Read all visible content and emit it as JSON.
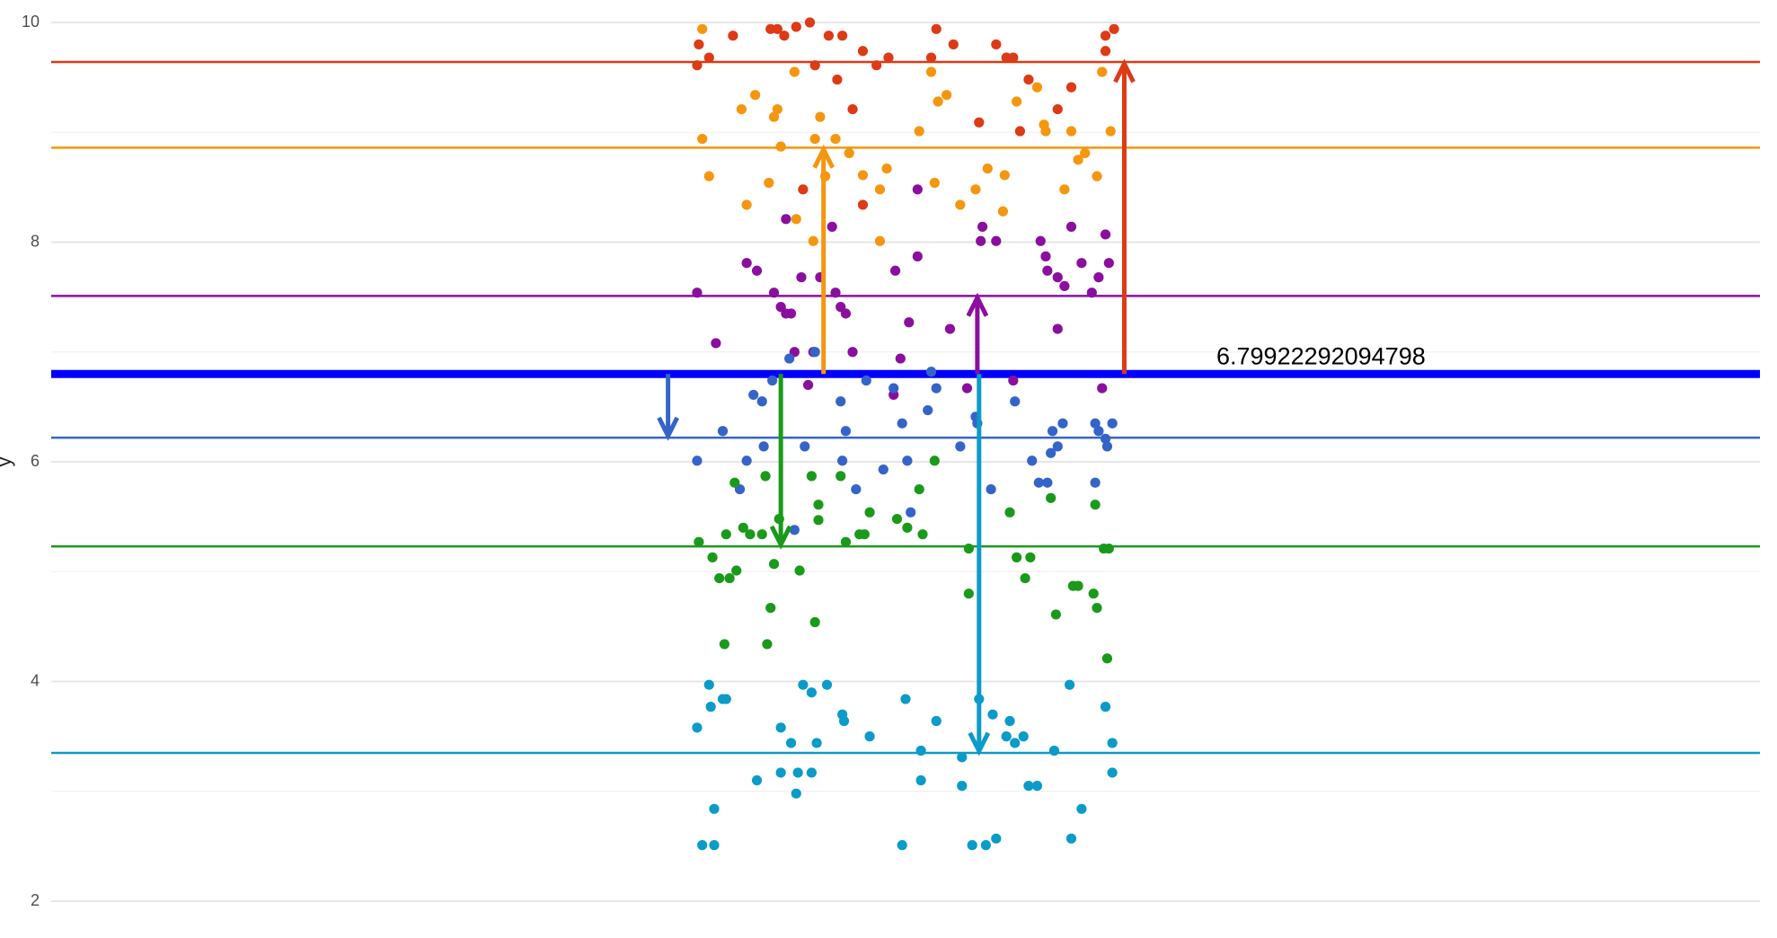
{
  "chart_data": {
    "type": "scatter",
    "ylabel": "y",
    "xlim": [
      0,
      100
    ],
    "ylim": [
      2,
      10
    ],
    "yticks": [
      2,
      4,
      6,
      8,
      10
    ],
    "minor_yticks": [
      3,
      5,
      7,
      9
    ],
    "grid": true,
    "overall_mean": 6.79922292094798,
    "overall_color": "#0000ff",
    "series": [
      {
        "color": "#dd3a15",
        "mean": 9.64,
        "arrow_x": 62.8,
        "x": [
          37.8,
          37.9,
          38.5,
          39.9,
          42.1,
          42.5,
          42.9,
          43.6,
          44.4,
          44.7,
          45.5,
          46.0,
          46.3,
          46.9,
          47.5,
          48.3,
          49.0,
          51.8,
          51.5,
          52.8,
          54.3,
          55.3,
          55.9,
          56.3,
          56.7,
          57.2,
          58.9,
          59.7,
          61.7,
          62.2,
          61.7,
          47.5,
          44.0
        ],
        "values": [
          9.61,
          9.8,
          9.68,
          9.88,
          9.94,
          9.94,
          9.88,
          9.96,
          10.0,
          9.61,
          9.88,
          9.48,
          9.88,
          9.21,
          9.74,
          9.61,
          9.68,
          9.94,
          9.68,
          9.8,
          9.09,
          9.8,
          9.68,
          9.68,
          9.01,
          9.48,
          9.21,
          9.41,
          9.74,
          9.94,
          9.88,
          8.34,
          8.48
        ]
      },
      {
        "color": "#f5960f",
        "mean": 8.86,
        "arrow_x": 45.2,
        "x": [
          38.1,
          38.5,
          40.4,
          40.7,
          41.2,
          42.0,
          42.3,
          42.5,
          42.7,
          43.5,
          43.6,
          44.6,
          45.0,
          44.7,
          45.3,
          45.9,
          46.7,
          47.5,
          48.5,
          48.9,
          48.5,
          50.8,
          51.5,
          51.7,
          51.9,
          52.4,
          53.2,
          54.1,
          54.8,
          55.7,
          55.8,
          56.5,
          57.7,
          58.1,
          58.2,
          59.3,
          59.7,
          60.1,
          60.5,
          61.2,
          61.5,
          62.0,
          38.1
        ],
        "values": [
          8.94,
          8.6,
          9.21,
          8.34,
          9.34,
          8.54,
          9.14,
          9.21,
          8.87,
          9.55,
          8.21,
          8.01,
          9.14,
          8.94,
          8.6,
          8.94,
          8.81,
          8.61,
          8.01,
          8.67,
          8.48,
          9.01,
          9.55,
          8.54,
          9.28,
          9.34,
          8.34,
          8.48,
          8.67,
          8.28,
          8.61,
          9.28,
          9.41,
          9.07,
          9.01,
          8.48,
          9.01,
          8.75,
          8.81,
          8.6,
          9.55,
          9.01,
          9.94
        ]
      },
      {
        "color": "#8b0f9e",
        "mean": 7.51,
        "arrow_x": 54.2,
        "x": [
          37.8,
          38.9,
          40.7,
          41.3,
          42.3,
          42.7,
          43.0,
          43.3,
          43.5,
          43.9,
          44.6,
          45.0,
          45.7,
          45.9,
          46.2,
          46.5,
          46.9,
          49.4,
          49.3,
          49.7,
          50.2,
          50.7,
          50.7,
          52.6,
          53.6,
          54.4,
          54.5,
          55.3,
          56.3,
          57.9,
          58.2,
          58.3,
          58.9,
          58.9,
          59.3,
          59.7,
          60.3,
          60.9,
          61.3,
          61.7,
          61.9,
          61.5,
          44.3,
          43.0
        ],
        "values": [
          7.54,
          7.08,
          7.81,
          7.74,
          7.54,
          7.41,
          7.35,
          7.35,
          7.0,
          7.68,
          7.0,
          7.68,
          8.14,
          7.54,
          7.41,
          7.35,
          7.0,
          7.74,
          6.61,
          6.94,
          7.27,
          7.87,
          8.48,
          7.21,
          6.67,
          8.01,
          8.14,
          8.01,
          6.74,
          8.01,
          7.87,
          7.74,
          7.68,
          7.21,
          7.6,
          8.14,
          7.81,
          7.54,
          7.68,
          8.07,
          7.81,
          6.67,
          6.7,
          8.21
        ]
      },
      {
        "color": "#3464c8",
        "mean": 6.22,
        "arrow_x": 36.1,
        "x": [
          37.8,
          39.3,
          40.3,
          40.7,
          41.1,
          41.6,
          41.7,
          42.2,
          43.2,
          44.1,
          44.7,
          46.2,
          46.3,
          46.5,
          47.1,
          47.7,
          48.7,
          49.3,
          49.8,
          50.1,
          50.3,
          51.3,
          51.5,
          51.8,
          53.2,
          54.1,
          54.2,
          55.0,
          56.4,
          57.4,
          57.8,
          58.3,
          58.5,
          58.6,
          58.9,
          59.2,
          61.1,
          61.1,
          61.3,
          61.7,
          62.1,
          61.8,
          43.5
        ],
        "values": [
          6.01,
          6.28,
          5.75,
          6.01,
          6.61,
          6.55,
          6.14,
          6.74,
          6.94,
          6.14,
          7.0,
          6.55,
          6.01,
          6.28,
          5.75,
          6.74,
          5.93,
          6.67,
          6.35,
          6.01,
          5.54,
          6.47,
          6.82,
          6.67,
          6.14,
          6.41,
          6.35,
          5.75,
          6.55,
          6.01,
          5.81,
          5.81,
          6.08,
          6.28,
          6.14,
          6.35,
          5.81,
          6.35,
          6.28,
          6.21,
          6.35,
          6.14,
          5.38
        ]
      },
      {
        "color": "#1a9a1a",
        "mean": 5.23,
        "arrow_x": 42.7,
        "x": [
          37.9,
          38.7,
          39.1,
          39.5,
          39.7,
          40.0,
          40.1,
          40.5,
          40.9,
          41.6,
          41.8,
          42.1,
          42.3,
          42.6,
          43.8,
          44.5,
          44.7,
          44.9,
          44.9,
          46.2,
          46.5,
          47.3,
          47.6,
          47.9,
          49.5,
          50.1,
          50.8,
          51.0,
          51.7,
          53.7,
          53.7,
          56.1,
          56.5,
          57.0,
          57.3,
          58.5,
          58.8,
          59.8,
          60.1,
          61.1,
          61.0,
          61.2,
          61.6,
          61.9,
          61.8,
          39.4,
          41.9
        ],
        "values": [
          5.27,
          5.13,
          4.94,
          5.34,
          4.94,
          5.81,
          5.01,
          5.4,
          5.34,
          5.34,
          5.87,
          4.67,
          5.07,
          5.48,
          5.01,
          5.87,
          4.54,
          5.61,
          5.47,
          5.87,
          5.27,
          5.34,
          5.34,
          5.54,
          5.48,
          5.4,
          5.75,
          5.34,
          6.01,
          5.21,
          4.8,
          5.54,
          5.13,
          4.94,
          5.13,
          5.67,
          4.61,
          4.87,
          4.87,
          5.61,
          4.8,
          4.67,
          5.21,
          5.21,
          4.21,
          4.34,
          4.34
        ]
      },
      {
        "color": "#0b9bc8",
        "mean": 3.35,
        "arrow_x": 54.3,
        "x": [
          37.8,
          38.1,
          38.5,
          38.6,
          38.8,
          38.8,
          39.3,
          39.5,
          41.3,
          42.7,
          42.7,
          43.3,
          43.6,
          43.7,
          44.0,
          44.5,
          44.5,
          44.8,
          45.4,
          46.3,
          46.4,
          47.9,
          49.8,
          50.0,
          50.9,
          50.9,
          51.8,
          53.3,
          53.3,
          53.9,
          54.3,
          54.7,
          55.1,
          55.3,
          56.1,
          55.9,
          56.4,
          56.9,
          57.2,
          57.7,
          58.7,
          59.6,
          59.7,
          60.3,
          61.7,
          62.1,
          62.1
        ],
        "values": [
          3.58,
          2.51,
          3.97,
          3.77,
          2.51,
          2.84,
          3.84,
          3.84,
          3.1,
          3.58,
          3.17,
          3.44,
          2.98,
          3.17,
          3.97,
          3.17,
          3.9,
          3.44,
          3.97,
          3.7,
          3.64,
          3.5,
          2.51,
          3.84,
          3.37,
          3.1,
          3.64,
          3.31,
          3.05,
          2.51,
          3.84,
          2.51,
          3.7,
          2.57,
          3.64,
          3.5,
          3.44,
          3.5,
          3.05,
          3.05,
          3.37,
          3.97,
          2.57,
          2.84,
          3.77,
          3.44,
          3.17
        ]
      }
    ]
  }
}
